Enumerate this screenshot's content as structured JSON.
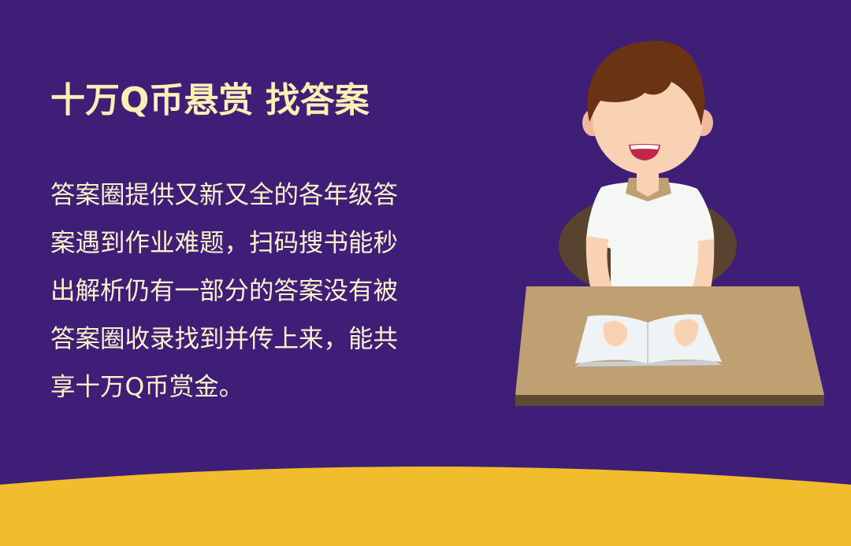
{
  "colors": {
    "background": "#3f1e78",
    "wave": "#f2bd2c",
    "title": "#fcefb6",
    "body_text": "#fbf1cb",
    "desk_top": "#bfa073",
    "desk_edge": "#5c4a33",
    "shirt": "#f5f7f4",
    "skin": "#f9d1b3",
    "hair": "#6a3313",
    "chair": "#5a432e",
    "book_page": "#f0f3f6"
  },
  "title": "十万Q币悬赏 找答案",
  "description": {
    "lines": [
      "答案圈提供又新又全的各年级答",
      "案遇到作业难题，扫码搜书能秒",
      "出解析仍有一部分的答案没有被",
      "答案圈收录找到并传上来，能共",
      "享十万Q币赏金。"
    ]
  },
  "illustration": {
    "subject": "student-reading-at-desk"
  }
}
